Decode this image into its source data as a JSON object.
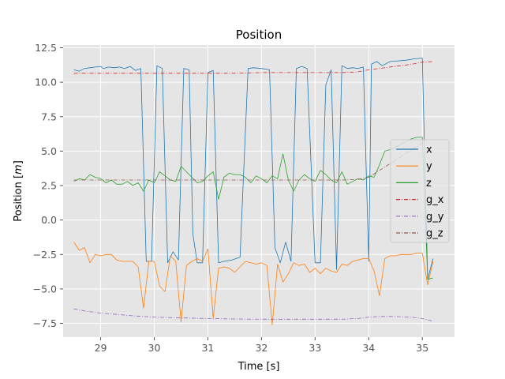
{
  "chart_data": {
    "type": "line",
    "title": "Position",
    "xlabel": "Time [s]",
    "ylabel": "Position [m]",
    "ylabel_parts": {
      "prefix": "Position [",
      "unit": "m",
      "suffix": "]"
    },
    "xlim": [
      28.3,
      35.6
    ],
    "ylim": [
      -8.5,
      12.7
    ],
    "xticks": [
      29,
      30,
      31,
      32,
      33,
      34,
      35
    ],
    "xtick_labels": [
      "29",
      "30",
      "31",
      "32",
      "33",
      "34",
      "35"
    ],
    "yticks": [
      -7.5,
      -5.0,
      -2.5,
      0.0,
      2.5,
      5.0,
      7.5,
      10.0,
      12.5
    ],
    "ytick_labels": [
      "−7.5",
      "−5.0",
      "−2.5",
      "0.0",
      "2.5",
      "5.0",
      "7.5",
      "10.0",
      "12.5"
    ],
    "grid": true,
    "legend_position": "right",
    "series": [
      {
        "name": "x",
        "color": "#1f77b4",
        "style": "solid",
        "x": [
          28.5,
          28.6,
          28.7,
          28.8,
          28.9,
          29.0,
          29.05,
          29.15,
          29.25,
          29.35,
          29.45,
          29.55,
          29.65,
          29.75,
          29.85,
          29.95,
          30.05,
          30.15,
          30.25,
          30.35,
          30.45,
          30.55,
          30.65,
          30.72,
          30.8,
          30.9,
          31.0,
          31.1,
          31.2,
          31.3,
          31.45,
          31.6,
          31.75,
          31.85,
          32.0,
          32.15,
          32.25,
          32.35,
          32.45,
          32.55,
          32.65,
          32.75,
          32.85,
          33.0,
          33.1,
          33.2,
          33.3,
          33.4,
          33.5,
          33.6,
          33.7,
          33.8,
          33.9,
          34.0,
          34.05,
          34.15,
          34.25,
          34.4,
          34.55,
          34.7,
          34.85,
          35.0,
          35.1,
          35.2
        ],
        "y": [
          10.9,
          10.8,
          11.0,
          11.05,
          11.1,
          11.15,
          11.0,
          11.1,
          11.05,
          11.1,
          11.0,
          11.15,
          10.85,
          11.0,
          -3.0,
          -3.0,
          11.2,
          11.0,
          -3.1,
          -2.3,
          -2.9,
          11.0,
          10.9,
          -1.0,
          -3.1,
          -3.1,
          10.7,
          10.85,
          -3.1,
          -3.0,
          -2.9,
          -2.7,
          11.0,
          11.05,
          11.0,
          10.9,
          -2.0,
          -3.1,
          -1.6,
          -3.0,
          11.0,
          11.15,
          11.0,
          -3.1,
          -3.1,
          9.8,
          10.9,
          -3.6,
          11.2,
          11.0,
          11.05,
          11.0,
          11.1,
          -3.0,
          11.3,
          11.5,
          11.2,
          11.5,
          11.55,
          11.6,
          11.7,
          11.75,
          -4.3,
          -2.8
        ]
      },
      {
        "name": "y",
        "color": "#ff7f0e",
        "style": "solid",
        "x": [
          28.5,
          28.6,
          28.7,
          28.8,
          28.9,
          29.0,
          29.1,
          29.2,
          29.3,
          29.4,
          29.5,
          29.6,
          29.7,
          29.8,
          29.9,
          30.0,
          30.1,
          30.2,
          30.3,
          30.4,
          30.5,
          30.6,
          30.7,
          30.8,
          30.9,
          31.0,
          31.1,
          31.2,
          31.3,
          31.4,
          31.5,
          31.6,
          31.7,
          31.8,
          31.9,
          32.0,
          32.1,
          32.2,
          32.3,
          32.4,
          32.5,
          32.6,
          32.7,
          32.8,
          32.9,
          33.0,
          33.1,
          33.2,
          33.3,
          33.4,
          33.5,
          33.6,
          33.7,
          33.8,
          33.9,
          34.0,
          34.1,
          34.2,
          34.3,
          34.4,
          34.5,
          34.6,
          34.7,
          34.8,
          34.9,
          35.0,
          35.1,
          35.2
        ],
        "y": [
          -1.6,
          -2.2,
          -2.0,
          -3.1,
          -2.5,
          -2.6,
          -2.5,
          -2.5,
          -2.9,
          -3.0,
          -3.0,
          -3.0,
          -3.4,
          -6.4,
          -3.0,
          -3.0,
          -4.8,
          -5.2,
          -2.6,
          -3.0,
          -7.4,
          -3.3,
          -3.0,
          -2.8,
          -3.0,
          -2.1,
          -7.1,
          -3.5,
          -3.4,
          -3.5,
          -3.8,
          -3.4,
          -3.0,
          -3.1,
          -3.2,
          -3.1,
          -3.3,
          -7.6,
          -3.2,
          -4.5,
          -3.9,
          -3.1,
          -3.3,
          -3.2,
          -3.8,
          -3.5,
          -3.9,
          -3.5,
          -3.7,
          -3.8,
          -3.2,
          -3.3,
          -3.0,
          -2.9,
          -2.8,
          -2.8,
          -3.7,
          -5.5,
          -2.8,
          -2.6,
          -2.6,
          -2.5,
          -2.5,
          -2.5,
          -2.4,
          -2.4,
          -4.7,
          -3.0
        ]
      },
      {
        "name": "z",
        "color": "#2ca02c",
        "style": "solid",
        "x": [
          28.5,
          28.6,
          28.7,
          28.8,
          28.9,
          29.0,
          29.1,
          29.2,
          29.3,
          29.4,
          29.5,
          29.6,
          29.7,
          29.8,
          29.9,
          30.0,
          30.1,
          30.2,
          30.3,
          30.4,
          30.5,
          30.6,
          30.7,
          30.8,
          30.9,
          31.0,
          31.1,
          31.2,
          31.3,
          31.4,
          31.5,
          31.6,
          31.7,
          31.8,
          31.9,
          32.0,
          32.1,
          32.2,
          32.3,
          32.4,
          32.5,
          32.6,
          32.7,
          32.8,
          32.9,
          33.0,
          33.1,
          33.2,
          33.3,
          33.4,
          33.5,
          33.6,
          33.7,
          33.8,
          33.9,
          34.0,
          34.1,
          34.2,
          34.3,
          34.4,
          34.5,
          34.6,
          34.7,
          34.8,
          34.9,
          35.0,
          35.1,
          35.2
        ],
        "y": [
          2.8,
          3.0,
          2.9,
          3.3,
          3.1,
          3.0,
          2.7,
          2.9,
          2.6,
          2.6,
          2.8,
          2.5,
          2.7,
          2.1,
          2.9,
          2.7,
          3.5,
          3.2,
          2.9,
          2.8,
          3.9,
          3.5,
          3.1,
          2.7,
          2.8,
          3.2,
          3.5,
          1.5,
          3.1,
          3.4,
          3.3,
          3.3,
          3.1,
          2.7,
          3.2,
          3.0,
          2.7,
          3.2,
          3.0,
          4.8,
          2.9,
          2.1,
          2.9,
          3.3,
          3.0,
          2.8,
          3.6,
          3.3,
          2.9,
          2.7,
          3.5,
          2.6,
          2.8,
          3.0,
          2.9,
          3.2,
          3.1,
          4.0,
          5.0,
          5.1,
          5.3,
          5.5,
          5.7,
          5.9,
          6.0,
          6.0,
          -4.3,
          -4.2
        ]
      },
      {
        "name": "g_x",
        "color": "#d62728",
        "style": "dashdot",
        "x": [
          28.5,
          29.0,
          29.5,
          30.0,
          30.5,
          31.0,
          31.5,
          32.0,
          32.5,
          33.0,
          33.5,
          33.8,
          34.0,
          34.2,
          34.4,
          34.6,
          34.8,
          35.0,
          35.2
        ],
        "y": [
          10.65,
          10.65,
          10.65,
          10.65,
          10.65,
          10.65,
          10.65,
          10.7,
          10.7,
          10.7,
          10.7,
          10.75,
          10.9,
          11.0,
          11.1,
          11.2,
          11.3,
          11.45,
          11.5
        ]
      },
      {
        "name": "g_y",
        "color": "#9467bd",
        "style": "dashdot",
        "x": [
          28.5,
          28.7,
          29.0,
          29.3,
          29.6,
          30.0,
          30.5,
          31.0,
          31.5,
          32.0,
          32.5,
          33.0,
          33.5,
          33.8,
          34.0,
          34.2,
          34.5,
          34.8,
          35.0,
          35.2
        ],
        "y": [
          -6.45,
          -6.6,
          -6.75,
          -6.85,
          -6.95,
          -7.05,
          -7.1,
          -7.15,
          -7.18,
          -7.2,
          -7.2,
          -7.2,
          -7.2,
          -7.15,
          -7.05,
          -7.0,
          -7.0,
          -7.05,
          -7.15,
          -7.35
        ]
      },
      {
        "name": "g_z",
        "color": "#8c564b",
        "style": "dashdot",
        "x": [
          28.5,
          29.0,
          29.5,
          30.0,
          30.5,
          31.0,
          31.5,
          32.0,
          32.5,
          33.0,
          33.5,
          33.8,
          34.0,
          34.2,
          34.4,
          34.6,
          34.8,
          35.0
        ],
        "y": [
          2.9,
          2.9,
          2.9,
          2.9,
          2.9,
          2.9,
          2.9,
          2.9,
          2.9,
          2.9,
          2.9,
          2.95,
          3.1,
          3.6,
          4.1,
          4.6,
          5.1,
          5.6
        ]
      }
    ]
  }
}
